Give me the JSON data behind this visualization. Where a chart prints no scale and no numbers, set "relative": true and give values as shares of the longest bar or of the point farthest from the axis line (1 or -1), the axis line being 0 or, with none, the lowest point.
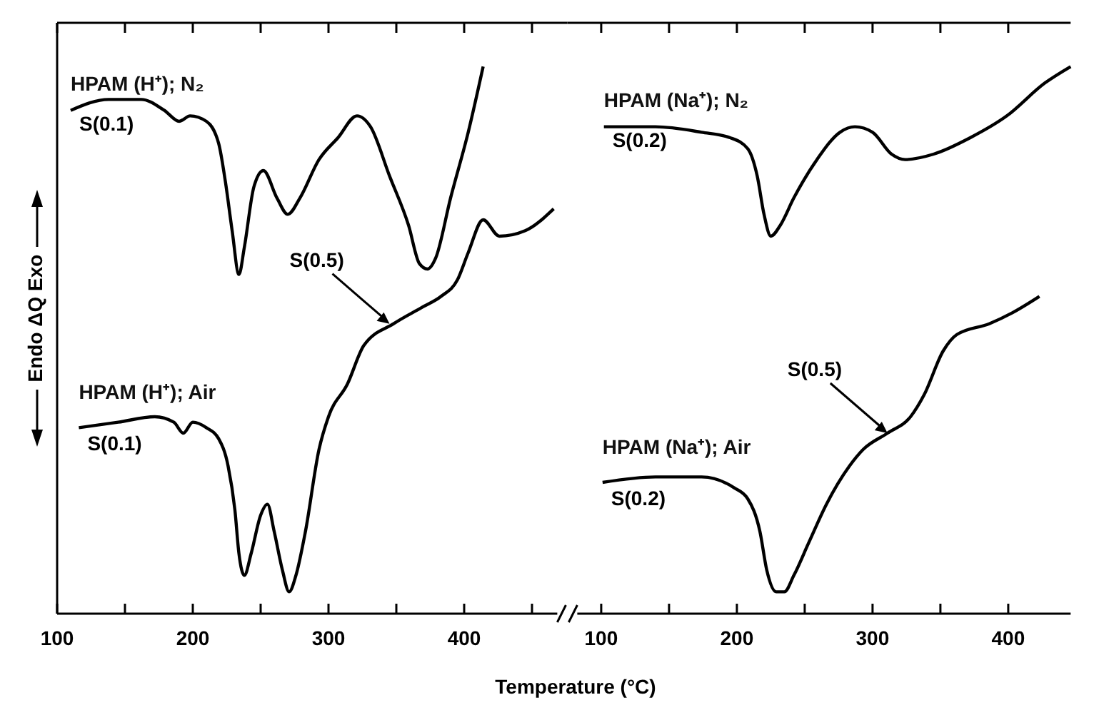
{
  "chart_data": [
    {
      "type": "line",
      "relative": true,
      "xlabel": "Temperature (°C)",
      "ylabel": "Endo ΔQ Exo",
      "xlim": [
        100,
        476
      ],
      "xticks": [
        100,
        {
          "value": 150,
          "label": null
        },
        200,
        {
          "value": 250,
          "label": null
        },
        300,
        {
          "value": 350,
          "label": null
        },
        400,
        {
          "value": 450,
          "label": null
        }
      ],
      "tick_labels": "x",
      "grid": false,
      "marker": "none",
      "line_style": "solid",
      "series": [
        {
          "name": "HPAM (H⁺); N₂",
          "color": "#000000",
          "x": [
            110,
            138,
            162,
            179,
            190,
            198,
            210,
            219,
            224,
            229,
            234,
            238,
            245,
            252,
            262,
            270,
            279,
            293,
            307,
            321,
            331,
            345,
            359,
            367,
            373,
            379,
            390,
            403,
            414
          ],
          "values": [
            0.92,
            0.94,
            0.94,
            0.92,
            0.9,
            0.91,
            0.9,
            0.86,
            0.79,
            0.7,
            0.62,
            0.67,
            0.78,
            0.81,
            0.76,
            0.73,
            0.76,
            0.83,
            0.87,
            0.91,
            0.89,
            0.8,
            0.71,
            0.64,
            0.63,
            0.65,
            0.76,
            0.88,
            1
          ]
        },
        {
          "name": "HPAM (H⁺); Air",
          "color": "#000000",
          "x": [
            116,
            145,
            172,
            186,
            193,
            200,
            210,
            219,
            226,
            231,
            234,
            238,
            243,
            250,
            255,
            260,
            266,
            271,
            276,
            283,
            293,
            300,
            314,
            326,
            348,
            369,
            383,
            395,
            403,
            414,
            426,
            445,
            466
          ],
          "values": [
            0.34,
            0.35,
            0.36,
            0.35,
            0.33,
            0.35,
            0.34,
            0.32,
            0.27,
            0.19,
            0.11,
            0.07,
            0.11,
            0.18,
            0.2,
            0.15,
            0.08,
            0.04,
            0.07,
            0.15,
            0.3,
            0.36,
            0.42,
            0.49,
            0.53,
            0.56,
            0.58,
            0.61,
            0.66,
            0.72,
            0.69,
            0.7,
            0.74
          ]
        }
      ],
      "annotations": [
        {
          "text": "S(0.1)",
          "x": 110,
          "y": 0.92
        },
        {
          "text": "S(0.1)",
          "x": 116,
          "y": 0.34
        },
        {
          "text": "S(0.5)",
          "x": 345,
          "y": 0.53
        }
      ]
    },
    {
      "type": "line",
      "relative": true,
      "xlim": [
        75,
        446
      ],
      "xticks": [
        100,
        {
          "value": 150,
          "label": null
        },
        200,
        {
          "value": 250,
          "label": null
        },
        300,
        {
          "value": 350,
          "label": null
        },
        400
      ],
      "tick_labels": "x",
      "grid": false,
      "marker": "none",
      "line_style": "solid",
      "series": [
        {
          "name": "HPAM (Na⁺); N₂",
          "color": "#000000",
          "x": [
            102,
            140,
            174,
            195,
            208,
            215,
            220,
            225,
            232,
            242,
            259,
            276,
            287,
            300,
            314,
            324,
            345,
            372,
            399,
            427,
            446
          ],
          "values": [
            0.89,
            0.89,
            0.88,
            0.87,
            0.85,
            0.8,
            0.73,
            0.69,
            0.71,
            0.76,
            0.83,
            0.88,
            0.89,
            0.88,
            0.84,
            0.83,
            0.84,
            0.87,
            0.91,
            0.97,
            1
          ]
        },
        {
          "name": "HPAM (Na⁺); Air",
          "color": "#000000",
          "x": [
            101,
            140,
            174,
            198,
            208,
            217,
            222,
            229,
            235,
            242,
            253,
            266,
            283,
            293,
            311,
            328,
            338,
            352,
            362,
            386,
            403,
            423
          ],
          "values": [
            0.24,
            0.25,
            0.25,
            0.23,
            0.21,
            0.15,
            0.08,
            0.04,
            0.04,
            0.07,
            0.13,
            0.2,
            0.27,
            0.3,
            0.33,
            0.36,
            0.4,
            0.48,
            0.51,
            0.53,
            0.55,
            0.58
          ]
        }
      ],
      "annotations": [
        {
          "text": "S(0.2)",
          "x": 102,
          "y": 0.89
        },
        {
          "text": "S(0.2)",
          "x": 101,
          "y": 0.24
        },
        {
          "text": "S(0.5)",
          "x": 311,
          "y": 0.33
        }
      ]
    }
  ]
}
